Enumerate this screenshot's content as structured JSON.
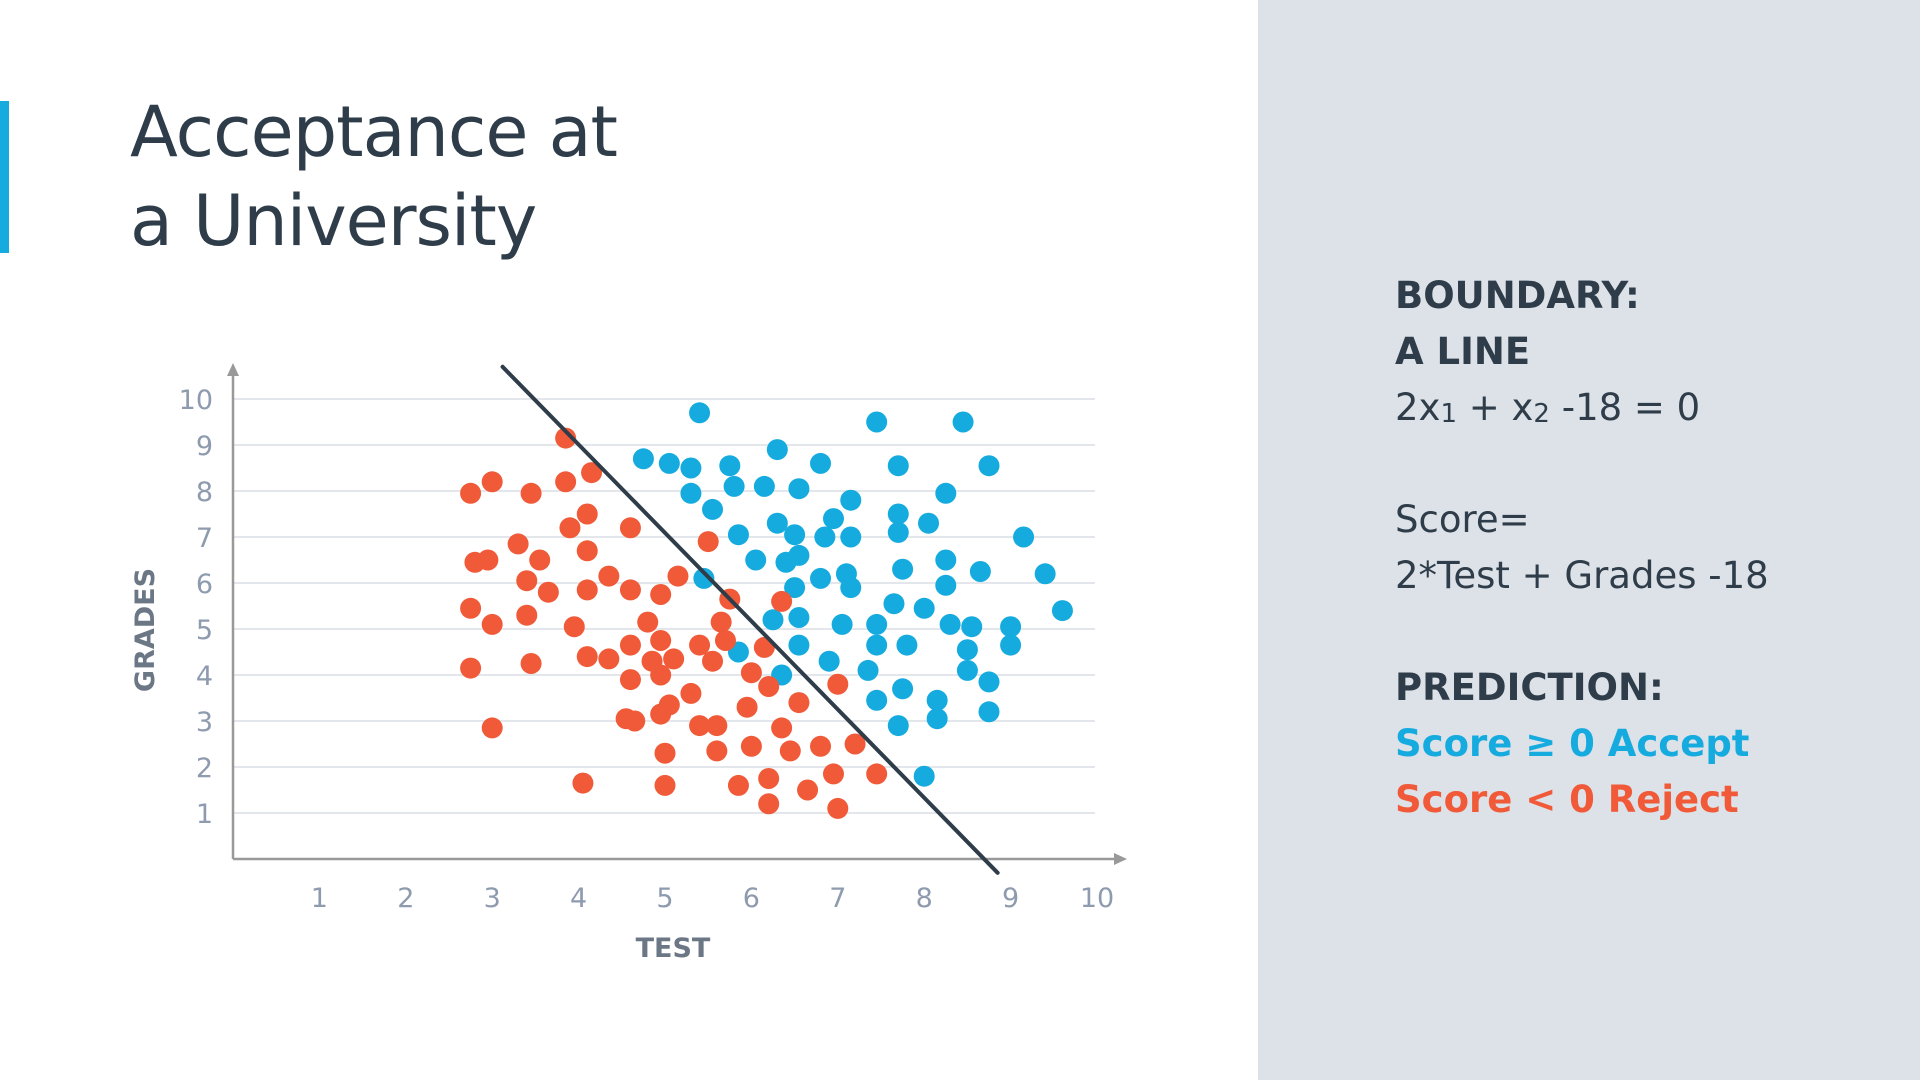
{
  "slide": {
    "title_line1": "Acceptance at",
    "title_line2": "a University"
  },
  "panel": {
    "boundary_heading": "BOUNDARY:",
    "boundary_subheading": "A LINE",
    "equation": {
      "a": "2x",
      "a_sub": "1",
      "b": " + x",
      "b_sub": "2",
      "rest": " -18 = 0"
    },
    "score_label": "Score=",
    "score_formula": "2*Test + Grades -18",
    "prediction_heading": "PREDICTION:",
    "accept_rule": "Score ≥ 0 Accept",
    "reject_rule": "Score < 0 Reject"
  },
  "colors": {
    "accept": "#16abdf",
    "reject": "#f05a38",
    "text": "#2e3d49",
    "axis": "#999999",
    "tick": "#8e9bae",
    "grid": "#e3e6ea",
    "line": "#2e3d49",
    "panel_bg": "#dde1e8"
  },
  "chart_data": {
    "type": "scatter",
    "xlabel": "TEST",
    "ylabel": "GRADES",
    "xlim": [
      0,
      10
    ],
    "ylim": [
      0,
      10
    ],
    "xticks": [
      "1",
      "2",
      "3",
      "4",
      "5",
      "6",
      "7",
      "8",
      "9",
      "10"
    ],
    "yticks": [
      "1",
      "2",
      "3",
      "4",
      "5",
      "6",
      "7",
      "8",
      "9",
      "10"
    ],
    "grid": "horizontal",
    "boundary": {
      "points": [
        [
          3.12,
          10.7
        ],
        [
          8.85,
          -0.3
        ]
      ]
    },
    "series": [
      {
        "color": "#16abdf",
        "points": [
          [
            5.4,
            9.7
          ],
          [
            6.3,
            8.9
          ],
          [
            7.45,
            9.5
          ],
          [
            8.45,
            9.5
          ],
          [
            4.75,
            8.7
          ],
          [
            5.05,
            8.6
          ],
          [
            5.3,
            8.5
          ],
          [
            5.75,
            8.55
          ],
          [
            6.8,
            8.6
          ],
          [
            7.7,
            8.55
          ],
          [
            8.75,
            8.55
          ],
          [
            5.3,
            7.95
          ],
          [
            5.8,
            8.1
          ],
          [
            6.15,
            8.1
          ],
          [
            6.55,
            8.05
          ],
          [
            8.25,
            7.95
          ],
          [
            7.15,
            7.8
          ],
          [
            5.55,
            7.6
          ],
          [
            6.95,
            7.4
          ],
          [
            7.7,
            7.5
          ],
          [
            8.05,
            7.3
          ],
          [
            6.3,
            7.3
          ],
          [
            6.5,
            7.05
          ],
          [
            5.85,
            7.05
          ],
          [
            6.85,
            7.0
          ],
          [
            7.15,
            7.0
          ],
          [
            7.7,
            7.1
          ],
          [
            9.15,
            7.0
          ],
          [
            6.05,
            6.5
          ],
          [
            6.4,
            6.45
          ],
          [
            6.55,
            6.6
          ],
          [
            6.8,
            6.1
          ],
          [
            7.1,
            6.2
          ],
          [
            7.15,
            5.9
          ],
          [
            7.75,
            6.3
          ],
          [
            8.25,
            6.5
          ],
          [
            8.65,
            6.25
          ],
          [
            9.4,
            6.2
          ],
          [
            5.45,
            6.1
          ],
          [
            6.5,
            5.9
          ],
          [
            8.25,
            5.95
          ],
          [
            9.6,
            5.4
          ],
          [
            6.25,
            5.2
          ],
          [
            6.55,
            5.25
          ],
          [
            7.05,
            5.1
          ],
          [
            7.45,
            5.1
          ],
          [
            7.65,
            5.55
          ],
          [
            8.0,
            5.45
          ],
          [
            8.3,
            5.1
          ],
          [
            8.55,
            5.05
          ],
          [
            9.0,
            5.05
          ],
          [
            5.85,
            4.5
          ],
          [
            6.55,
            4.65
          ],
          [
            7.45,
            4.65
          ],
          [
            7.8,
            4.65
          ],
          [
            8.5,
            4.55
          ],
          [
            9.0,
            4.65
          ],
          [
            6.35,
            4.0
          ],
          [
            6.9,
            4.3
          ],
          [
            7.35,
            4.1
          ],
          [
            8.5,
            4.1
          ],
          [
            8.75,
            3.85
          ],
          [
            7.45,
            3.45
          ],
          [
            7.75,
            3.7
          ],
          [
            8.15,
            3.45
          ],
          [
            8.15,
            3.05
          ],
          [
            8.75,
            3.2
          ],
          [
            7.7,
            2.9
          ],
          [
            8.0,
            1.8
          ]
        ]
      },
      {
        "color": "#f05a38",
        "points": [
          [
            3.85,
            9.15
          ],
          [
            4.15,
            8.4
          ],
          [
            2.75,
            7.95
          ],
          [
            3.0,
            8.2
          ],
          [
            3.45,
            7.95
          ],
          [
            3.85,
            8.2
          ],
          [
            4.1,
            7.5
          ],
          [
            4.6,
            7.2
          ],
          [
            3.9,
            7.2
          ],
          [
            5.5,
            6.9
          ],
          [
            3.3,
            6.85
          ],
          [
            4.1,
            6.7
          ],
          [
            2.8,
            6.45
          ],
          [
            2.95,
            6.5
          ],
          [
            3.55,
            6.5
          ],
          [
            3.4,
            6.05
          ],
          [
            3.65,
            5.8
          ],
          [
            4.35,
            6.15
          ],
          [
            4.1,
            5.85
          ],
          [
            4.6,
            5.85
          ],
          [
            4.95,
            5.75
          ],
          [
            5.15,
            6.15
          ],
          [
            5.75,
            5.65
          ],
          [
            6.35,
            5.6
          ],
          [
            2.75,
            5.45
          ],
          [
            3.4,
            5.3
          ],
          [
            3.0,
            5.1
          ],
          [
            3.95,
            5.05
          ],
          [
            4.8,
            5.15
          ],
          [
            5.65,
            5.15
          ],
          [
            4.6,
            4.65
          ],
          [
            4.95,
            4.75
          ],
          [
            5.4,
            4.65
          ],
          [
            5.7,
            4.75
          ],
          [
            6.15,
            4.6
          ],
          [
            4.1,
            4.4
          ],
          [
            4.35,
            4.35
          ],
          [
            4.85,
            4.3
          ],
          [
            5.1,
            4.35
          ],
          [
            5.55,
            4.3
          ],
          [
            2.75,
            4.15
          ],
          [
            3.45,
            4.25
          ],
          [
            4.6,
            3.9
          ],
          [
            4.95,
            4.0
          ],
          [
            6.0,
            4.05
          ],
          [
            6.2,
            3.75
          ],
          [
            5.3,
            3.6
          ],
          [
            5.05,
            3.35
          ],
          [
            5.95,
            3.3
          ],
          [
            6.55,
            3.4
          ],
          [
            7.0,
            3.8
          ],
          [
            4.55,
            3.05
          ],
          [
            4.65,
            3.0
          ],
          [
            4.95,
            3.15
          ],
          [
            5.4,
            2.9
          ],
          [
            5.6,
            2.9
          ],
          [
            6.35,
            2.85
          ],
          [
            3.0,
            2.85
          ],
          [
            5.0,
            2.3
          ],
          [
            5.6,
            2.35
          ],
          [
            6.0,
            2.45
          ],
          [
            6.45,
            2.35
          ],
          [
            6.8,
            2.45
          ],
          [
            7.2,
            2.5
          ],
          [
            6.2,
            1.75
          ],
          [
            6.95,
            1.85
          ],
          [
            7.45,
            1.85
          ],
          [
            4.05,
            1.65
          ],
          [
            5.0,
            1.6
          ],
          [
            5.85,
            1.6
          ],
          [
            6.65,
            1.5
          ],
          [
            6.2,
            1.2
          ],
          [
            7.0,
            1.1
          ]
        ]
      }
    ]
  }
}
